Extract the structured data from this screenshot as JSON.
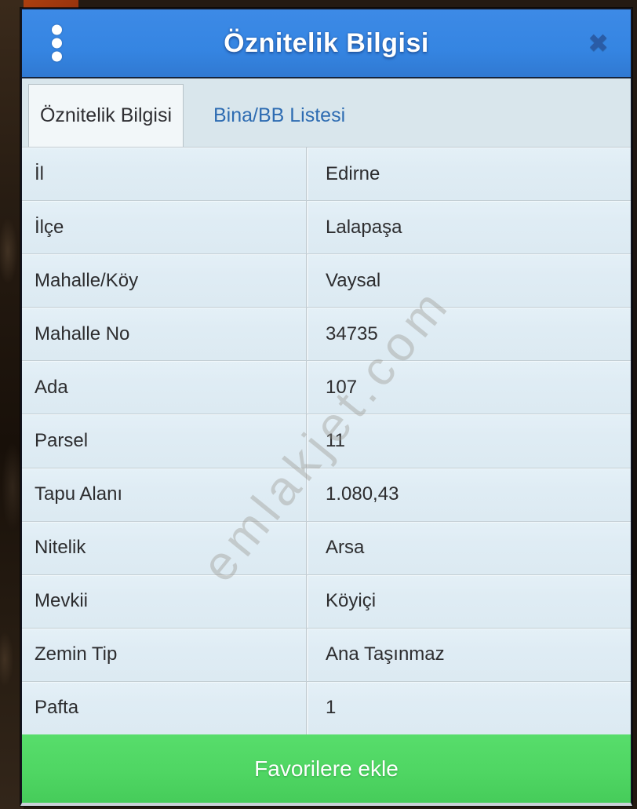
{
  "header": {
    "title": "Öznitelik Bilgisi",
    "close_glyph": "✖"
  },
  "tabs": [
    {
      "label": "Öznitelik Bilgisi",
      "active": true
    },
    {
      "label": "Bina/BB Listesi",
      "active": false
    }
  ],
  "table": {
    "rows": [
      {
        "label": "İl",
        "value": "Edirne"
      },
      {
        "label": "İlçe",
        "value": "Lalapaşa"
      },
      {
        "label": "Mahalle/Köy",
        "value": "Vaysal"
      },
      {
        "label": "Mahalle No",
        "value": "34735"
      },
      {
        "label": "Ada",
        "value": "107"
      },
      {
        "label": "Parsel",
        "value": "11"
      },
      {
        "label": "Tapu Alanı",
        "value": "1.080,43"
      },
      {
        "label": "Nitelik",
        "value": "Arsa"
      },
      {
        "label": "Mevkii",
        "value": "Köyiçi"
      },
      {
        "label": "Zemin Tip",
        "value": "Ana Taşınmaz"
      },
      {
        "label": "Pafta",
        "value": "1"
      }
    ]
  },
  "footer": {
    "add_favorite_label": "Favorilere ekle"
  },
  "watermark": {
    "text": "emlakjet.com"
  },
  "colors": {
    "header_blue": "#3585e2",
    "button_green": "#4fd663",
    "row_bg": "#dfecf4",
    "inactive_tab_text": "#2e6cb2",
    "background_red_patch": "#9a340d"
  }
}
